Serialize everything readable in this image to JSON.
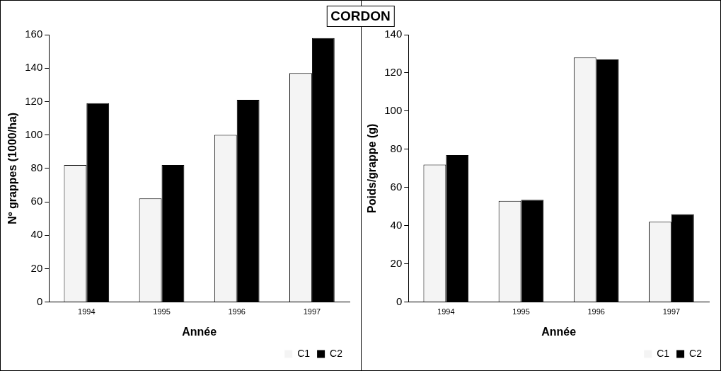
{
  "chart_data": [
    {
      "type": "bar",
      "title": "CORDON",
      "categories": [
        "1994",
        "1995",
        "1996",
        "1997"
      ],
      "xlabel": "Année",
      "ylabel": "Nº grappes (1000/ha)",
      "ylim": [
        0,
        160
      ],
      "yticks": [
        0,
        20,
        40,
        60,
        80,
        100,
        120,
        140,
        160
      ],
      "grid": false,
      "legend": "bottom right",
      "series": [
        {
          "name": "C1",
          "color": "#f4f4f4",
          "values": [
            82,
            62,
            100,
            137
          ]
        },
        {
          "name": "C2",
          "color": "#000000",
          "values": [
            119,
            82,
            121,
            158
          ]
        }
      ]
    },
    {
      "type": "bar",
      "categories": [
        "1994",
        "1995",
        "1996",
        "1997"
      ],
      "xlabel": "Année",
      "ylabel": "Poids/grappe (g)",
      "ylim": [
        0,
        140
      ],
      "yticks": [
        0,
        20,
        40,
        60,
        80,
        100,
        120,
        140
      ],
      "grid": false,
      "legend": "bottom right",
      "series": [
        {
          "name": "C1",
          "color": "#f4f4f4",
          "values": [
            72,
            53,
            128,
            42
          ]
        },
        {
          "name": "C2",
          "color": "#000000",
          "values": [
            77,
            53.5,
            127,
            46
          ]
        }
      ]
    }
  ]
}
